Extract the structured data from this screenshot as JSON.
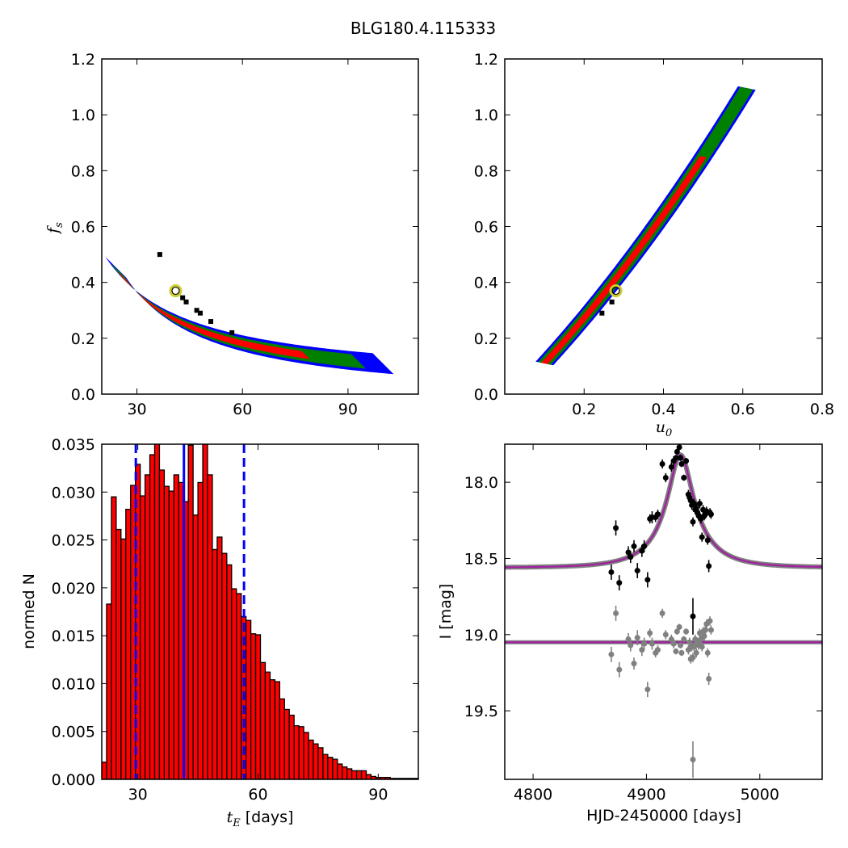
{
  "figure": {
    "title": "BLG180.4.115333"
  },
  "colors": {
    "blue": "#0000ff",
    "green": "#008000",
    "red": "#ff0000",
    "black": "#000000",
    "marker_yellow": "#cccc33",
    "hist_fill": "#ff0000",
    "hist_edge": "#000000",
    "model": "#a020a0",
    "model_band": "#808080",
    "residual": "#808080"
  },
  "chart_data": [
    {
      "id": "fs_vs_tE",
      "type": "heatmap",
      "title": "",
      "xlabel": "",
      "ylabel": "f_s",
      "xlim": [
        20,
        110
      ],
      "ylim": [
        0.0,
        1.2
      ],
      "xticks": [
        30,
        60,
        90
      ],
      "yticks": [
        0.0,
        0.2,
        0.4,
        0.6,
        0.8,
        1.0,
        1.2
      ],
      "confidence_regions": [
        {
          "level": "outer",
          "color": "blue",
          "tE_min": 24,
          "tE_max": 100
        },
        {
          "level": "middle",
          "color": "green",
          "tE_min": 24.5,
          "tE_max": 93
        },
        {
          "level": "inner",
          "color": "red",
          "tE_min": 25.5,
          "tE_max": 78
        }
      ],
      "best_fit": {
        "tE": 41,
        "fs": 0.37
      }
    },
    {
      "id": "fs_vs_u0",
      "type": "heatmap",
      "title": "",
      "xlabel": "u_0",
      "ylabel": "",
      "xlim": [
        0.0,
        0.8
      ],
      "ylim": [
        0.0,
        1.2
      ],
      "xticks": [
        0.2,
        0.4,
        0.6,
        0.8
      ],
      "yticks": [
        0.0,
        0.2,
        0.4,
        0.6,
        0.8,
        1.0,
        1.2
      ],
      "confidence_regions": [
        {
          "level": "outer",
          "color": "blue",
          "u0_min": 0.1,
          "u0_max": 0.62
        },
        {
          "level": "middle",
          "color": "green",
          "u0_min": 0.1,
          "u0_max": 0.62
        },
        {
          "level": "inner",
          "color": "red",
          "u0_min": 0.1,
          "u0_max": 0.5
        }
      ],
      "best_fit": {
        "u0": 0.28,
        "fs": 0.37
      }
    },
    {
      "id": "tE_histogram",
      "type": "bar",
      "title": "",
      "xlabel": "t_E [days]",
      "ylabel": "normed N",
      "xlim": [
        21,
        100
      ],
      "ylim": [
        0.0,
        0.035
      ],
      "xticks": [
        30,
        60,
        90
      ],
      "yticks": [
        0.0,
        0.005,
        0.01,
        0.015,
        0.02,
        0.025,
        0.03,
        0.035
      ],
      "ytick_labels": [
        "0.000",
        "0.005",
        "0.010",
        "0.015",
        "0.020",
        "0.025",
        "0.030",
        "0.035"
      ],
      "bin_start": 21,
      "bin_width": 1.2,
      "values": [
        0.0018,
        0.0183,
        0.0295,
        0.0261,
        0.0251,
        0.0282,
        0.0307,
        0.0329,
        0.0296,
        0.0318,
        0.0339,
        0.0351,
        0.0323,
        0.0306,
        0.0301,
        0.0318,
        0.031,
        0.029,
        0.0349,
        0.0276,
        0.031,
        0.035,
        0.0318,
        0.024,
        0.0253,
        0.0236,
        0.0224,
        0.0199,
        0.0194,
        0.017,
        0.0166,
        0.0152,
        0.0151,
        0.0122,
        0.0112,
        0.0104,
        0.0102,
        0.0084,
        0.0073,
        0.0067,
        0.0056,
        0.0055,
        0.0049,
        0.0041,
        0.0037,
        0.0033,
        0.0026,
        0.0023,
        0.0021,
        0.0016,
        0.0013,
        0.0011,
        0.0009,
        0.0009,
        0.0009,
        0.0005,
        0.0003,
        0.0002,
        0.0002,
        0.0002,
        0.0001,
        0.0001,
        0.0001,
        0.0001,
        0.0001,
        0.0001
      ],
      "median_line": 41.5,
      "dashed_lines": [
        29.5,
        56.5
      ]
    },
    {
      "id": "light_curve",
      "type": "scatter",
      "title": "",
      "xlabel": "HJD-2450000 [days]",
      "ylabel": "I [mag]",
      "xlim": [
        4775,
        5055
      ],
      "ylim": [
        19.95,
        17.75
      ],
      "xticks": [
        4800,
        4900,
        5000
      ],
      "yticks": [
        18.0,
        18.5,
        19.0,
        19.5
      ],
      "ytick_labels": [
        "18.0",
        "18.5",
        "19.0",
        "19.5"
      ],
      "model": {
        "t0": 4930,
        "baseline": 18.56,
        "peak": 17.82,
        "tE": 41,
        "u0": 0.28
      },
      "residual_baseline": 19.05,
      "series": [
        {
          "role": "data",
          "points": [
            [
              4869,
              18.59,
              0.05
            ],
            [
              4873,
              18.3,
              0.05
            ],
            [
              4876,
              18.66,
              0.05
            ],
            [
              4884,
              18.46,
              0.04
            ],
            [
              4886,
              18.49,
              0.04
            ],
            [
              4889,
              18.42,
              0.04
            ],
            [
              4892,
              18.58,
              0.05
            ],
            [
              4896,
              18.45,
              0.04
            ],
            [
              4898,
              18.42,
              0.04
            ],
            [
              4901,
              18.64,
              0.05
            ],
            [
              4903,
              18.24,
              0.03
            ],
            [
              4905,
              18.23,
              0.04
            ],
            [
              4908,
              18.23,
              0.03
            ],
            [
              4910,
              18.21,
              0.03
            ],
            [
              4914,
              17.88,
              0.03
            ],
            [
              4917,
              17.97,
              0.03
            ],
            [
              4922,
              17.9,
              0.03
            ],
            [
              4924,
              17.86,
              0.03
            ],
            [
              4926,
              17.84,
              0.02
            ],
            [
              4927,
              17.8,
              0.02
            ],
            [
              4929,
              17.77,
              0.02
            ],
            [
              4930,
              17.84,
              0.02
            ],
            [
              4931,
              17.88,
              0.02
            ],
            [
              4933,
              17.97,
              0.02
            ],
            [
              4935,
              17.86,
              0.02
            ],
            [
              4937,
              18.08,
              0.03
            ],
            [
              4938,
              18.1,
              0.03
            ],
            [
              4939,
              18.12,
              0.03
            ],
            [
              4940,
              18.15,
              0.03
            ],
            [
              4941,
              18.26,
              0.03
            ],
            [
              4942,
              18.14,
              0.03
            ],
            [
              4943,
              18.18,
              0.03
            ],
            [
              4944,
              18.17,
              0.03
            ],
            [
              4945,
              18.2,
              0.03
            ],
            [
              4946,
              18.22,
              0.03
            ],
            [
              4947,
              18.14,
              0.03
            ],
            [
              4948,
              18.24,
              0.03
            ],
            [
              4949,
              18.36,
              0.03
            ],
            [
              4950,
              18.18,
              0.03
            ],
            [
              4951,
              18.22,
              0.03
            ],
            [
              4952,
              18.21,
              0.03
            ],
            [
              4953,
              18.19,
              0.03
            ],
            [
              4954,
              18.38,
              0.03
            ],
            [
              4955,
              18.55,
              0.04
            ],
            [
              4956,
              18.2,
              0.03
            ],
            [
              4957,
              18.21,
              0.03
            ],
            [
              4941,
              18.88,
              0.12
            ]
          ]
        },
        {
          "role": "residuals",
          "points": [
            [
              4869,
              19.13,
              0.05
            ],
            [
              4873,
              18.86,
              0.05
            ],
            [
              4876,
              19.23,
              0.05
            ],
            [
              4884,
              19.03,
              0.04
            ],
            [
              4886,
              19.07,
              0.04
            ],
            [
              4889,
              19.19,
              0.04
            ],
            [
              4892,
              19.02,
              0.05
            ],
            [
              4896,
              19.1,
              0.04
            ],
            [
              4898,
              19.06,
              0.04
            ],
            [
              4901,
              19.36,
              0.05
            ],
            [
              4903,
              18.99,
              0.03
            ],
            [
              4905,
              19.06,
              0.04
            ],
            [
              4908,
              19.12,
              0.03
            ],
            [
              4910,
              19.1,
              0.03
            ],
            [
              4914,
              18.86,
              0.03
            ],
            [
              4917,
              19.0,
              0.03
            ],
            [
              4922,
              19.03,
              0.03
            ],
            [
              4924,
              19.06,
              0.03
            ],
            [
              4926,
              19.11,
              0.02
            ],
            [
              4927,
              18.98,
              0.02
            ],
            [
              4929,
              18.95,
              0.02
            ],
            [
              4930,
              19.07,
              0.02
            ],
            [
              4931,
              19.12,
              0.02
            ],
            [
              4933,
              19.03,
              0.02
            ],
            [
              4935,
              18.98,
              0.02
            ],
            [
              4937,
              19.1,
              0.03
            ],
            [
              4938,
              19.05,
              0.03
            ],
            [
              4939,
              19.16,
              0.03
            ],
            [
              4940,
              19.08,
              0.03
            ],
            [
              4941,
              19.15,
              0.03
            ],
            [
              4942,
              19.08,
              0.03
            ],
            [
              4943,
              19.03,
              0.03
            ],
            [
              4944,
              19.12,
              0.03
            ],
            [
              4945,
              19.05,
              0.03
            ],
            [
              4946,
              19.07,
              0.03
            ],
            [
              4947,
              18.99,
              0.03
            ],
            [
              4948,
              19.03,
              0.03
            ],
            [
              4949,
              19.08,
              0.03
            ],
            [
              4950,
              18.98,
              0.03
            ],
            [
              4951,
              19.01,
              0.03
            ],
            [
              4952,
              18.97,
              0.03
            ],
            [
              4953,
              18.93,
              0.03
            ],
            [
              4954,
              19.12,
              0.03
            ],
            [
              4955,
              19.29,
              0.04
            ],
            [
              4956,
              18.91,
              0.03
            ],
            [
              4957,
              18.97,
              0.03
            ],
            [
              4941,
              19.82,
              0.12
            ]
          ]
        }
      ]
    }
  ]
}
